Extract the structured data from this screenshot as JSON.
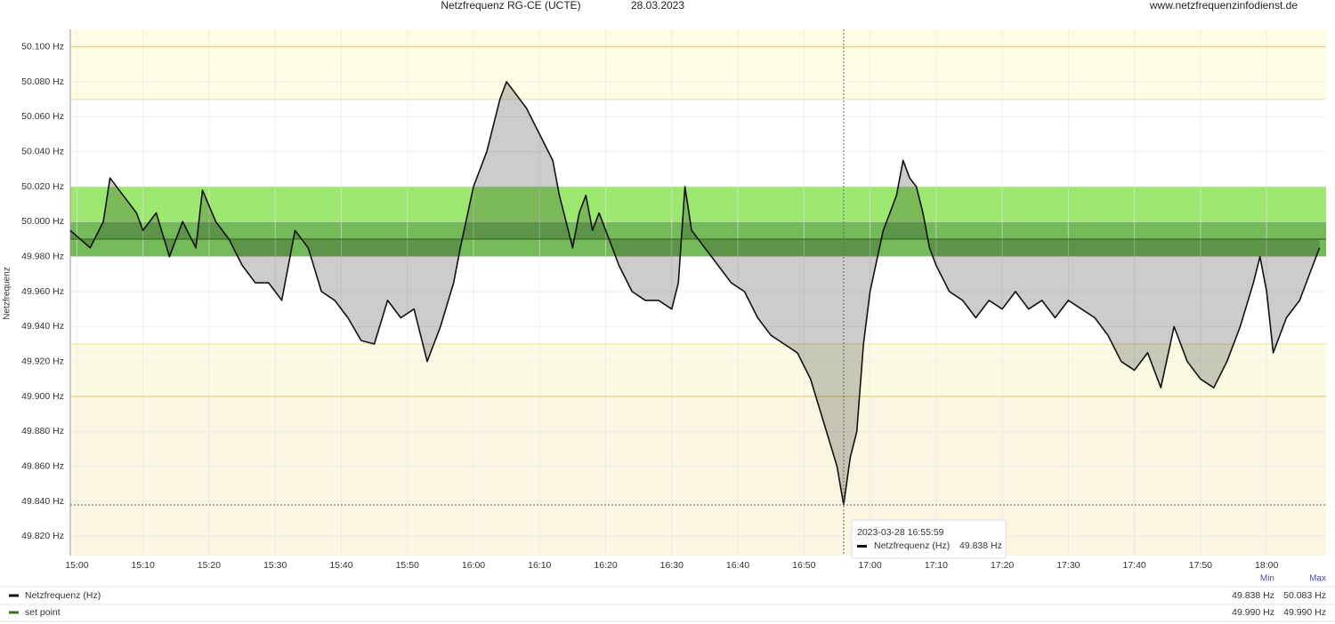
{
  "chart_data": {
    "type": "line",
    "title": "Netzfrequenz RG-CE (UCTE)",
    "date": "28.03.2023",
    "source": "www.netzfrequenzinfodienst.de",
    "ylabel": "Netzfrequenz",
    "x": [
      "14:59",
      "15:02",
      "15:04",
      "15:05",
      "15:07",
      "15:09",
      "15:10",
      "15:12",
      "15:14",
      "15:16",
      "15:18",
      "15:19",
      "15:21",
      "15:23",
      "15:25",
      "15:27",
      "15:29",
      "15:31",
      "15:33",
      "15:35",
      "15:37",
      "15:39",
      "15:41",
      "15:43",
      "15:45",
      "15:47",
      "15:49",
      "15:51",
      "15:53",
      "15:55",
      "15:57",
      "15:58",
      "16:00",
      "16:02",
      "16:04",
      "16:05",
      "16:06",
      "16:08",
      "16:10",
      "16:12",
      "16:13",
      "16:14",
      "16:15",
      "16:16",
      "16:17",
      "16:18",
      "16:19",
      "16:21",
      "16:22",
      "16:24",
      "16:26",
      "16:28",
      "16:30",
      "16:31",
      "16:32",
      "16:33",
      "16:35",
      "16:37",
      "16:39",
      "16:41",
      "16:43",
      "16:45",
      "16:47",
      "16:49",
      "16:51",
      "16:53",
      "16:55",
      "16:56",
      "16:57",
      "16:58",
      "16:59",
      "17:00",
      "17:02",
      "17:03",
      "17:04",
      "17:05",
      "17:06",
      "17:07",
      "17:08",
      "17:09",
      "17:10",
      "17:12",
      "17:14",
      "17:16",
      "17:18",
      "17:20",
      "17:22",
      "17:24",
      "17:26",
      "17:28",
      "17:30",
      "17:32",
      "17:34",
      "17:36",
      "17:38",
      "17:40",
      "17:42",
      "17:44",
      "17:46",
      "17:48",
      "17:50",
      "17:52",
      "17:54",
      "17:56",
      "17:58",
      "17:59",
      "18:00",
      "18:01",
      "18:03",
      "18:05",
      "18:07",
      "18:08"
    ],
    "series": [
      {
        "name": "Netzfrequenz (Hz)",
        "color": "#111111",
        "values": [
          49.995,
          49.985,
          50.0,
          50.025,
          50.015,
          50.005,
          49.995,
          50.005,
          49.98,
          50.0,
          49.985,
          50.018,
          50.0,
          49.99,
          49.975,
          49.965,
          49.965,
          49.955,
          49.995,
          49.985,
          49.96,
          49.955,
          49.945,
          49.932,
          49.93,
          49.955,
          49.945,
          49.95,
          49.92,
          49.94,
          49.965,
          49.985,
          50.02,
          50.04,
          50.07,
          50.08,
          50.075,
          50.065,
          50.05,
          50.035,
          50.015,
          50.0,
          49.985,
          50.005,
          50.015,
          49.995,
          50.005,
          49.985,
          49.975,
          49.96,
          49.955,
          49.955,
          49.95,
          49.965,
          50.02,
          49.995,
          49.985,
          49.975,
          49.965,
          49.96,
          49.945,
          49.935,
          49.93,
          49.925,
          49.91,
          49.885,
          49.86,
          49.838,
          49.865,
          49.88,
          49.93,
          49.96,
          49.995,
          50.005,
          50.015,
          50.035,
          50.025,
          50.02,
          50.005,
          49.985,
          49.975,
          49.96,
          49.955,
          49.945,
          49.955,
          49.95,
          49.96,
          49.95,
          49.955,
          49.945,
          49.955,
          49.95,
          49.945,
          49.935,
          49.92,
          49.915,
          49.925,
          49.905,
          49.94,
          49.92,
          49.91,
          49.905,
          49.92,
          49.94,
          49.965,
          49.98,
          49.96,
          49.925,
          49.945,
          49.955,
          49.975,
          49.985
        ]
      }
    ],
    "setpoint": {
      "name": "set point",
      "value": 49.99,
      "color": "#3d6b22"
    },
    "area_color": "#000000",
    "bands": [
      {
        "from": 50.07,
        "to": 50.11,
        "color": "#fdfde6"
      },
      {
        "from": 49.9,
        "to": 49.93,
        "color": "#fbfbe4"
      },
      {
        "from": 49.809,
        "to": 49.9,
        "color": "#fbf6e2"
      },
      {
        "from": 49.98,
        "to": 50.02,
        "color": "#9ce870"
      },
      {
        "from": 49.98,
        "to": 50.0,
        "color": "#74b95a"
      }
    ],
    "limit_lines": [
      {
        "value": 50.1,
        "color": "#e2d27a"
      },
      {
        "value": 50.07,
        "color": "#efe6a4"
      },
      {
        "value": 49.93,
        "color": "#efe6a4"
      },
      {
        "value": 49.9,
        "color": "#e2d27a"
      }
    ],
    "xlim": [
      "14:59",
      "18:09"
    ],
    "xticks": [
      "15:00",
      "15:10",
      "15:20",
      "15:30",
      "15:40",
      "15:50",
      "16:00",
      "16:10",
      "16:20",
      "16:30",
      "16:40",
      "16:50",
      "17:00",
      "17:10",
      "17:20",
      "17:30",
      "17:40",
      "17:50",
      "18:00"
    ],
    "ylim": [
      49.809,
      50.11
    ],
    "yticks": [
      {
        "value": 49.82,
        "label": "49.820 Hz"
      },
      {
        "value": 49.84,
        "label": "49.840 Hz"
      },
      {
        "value": 49.86,
        "label": "49.860 Hz"
      },
      {
        "value": 49.88,
        "label": "49.880 Hz"
      },
      {
        "value": 49.9,
        "label": "49.900 Hz"
      },
      {
        "value": 49.92,
        "label": "49.920 Hz"
      },
      {
        "value": 49.94,
        "label": "49.940 Hz"
      },
      {
        "value": 49.96,
        "label": "49.960 Hz"
      },
      {
        "value": 49.98,
        "label": "49.980 Hz"
      },
      {
        "value": 50.0,
        "label": "50.000 Hz"
      },
      {
        "value": 50.02,
        "label": "50.020 Hz"
      },
      {
        "value": 50.04,
        "label": "50.040 Hz"
      },
      {
        "value": 50.06,
        "label": "50.060 Hz"
      },
      {
        "value": 50.08,
        "label": "50.080 Hz"
      },
      {
        "value": 50.1,
        "label": "50.100 Hz"
      }
    ],
    "grid": true,
    "crosshair": {
      "x": "16:56",
      "y": 49.838
    },
    "tooltip": {
      "time": "2023-03-28 16:55:59",
      "name": "Netzfrequenz (Hz)",
      "value": "49.838 Hz"
    },
    "legend_stats": {
      "header": [
        "Min",
        "Max"
      ],
      "rows": [
        [
          "49.838 Hz",
          "50.083 Hz"
        ],
        [
          "49.990 Hz",
          "49.990 Hz"
        ]
      ]
    }
  }
}
